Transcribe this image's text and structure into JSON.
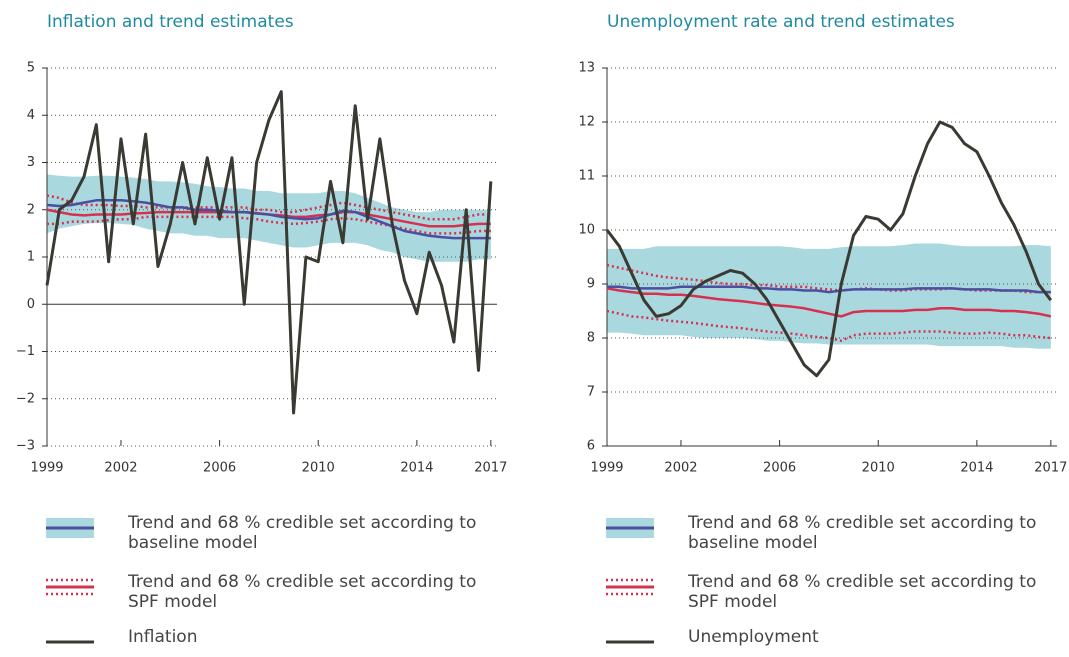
{
  "chart_data": [
    {
      "type": "line",
      "title": "Inflation and trend estimates",
      "x": [
        1999,
        1999.5,
        2000,
        2000.5,
        2001,
        2001.5,
        2002,
        2002.5,
        2003,
        2003.5,
        2004,
        2004.5,
        2005,
        2005.5,
        2006,
        2006.5,
        2007,
        2007.5,
        2008,
        2008.5,
        2009,
        2009.5,
        2010,
        2010.5,
        2011,
        2011.5,
        2012,
        2012.5,
        2013,
        2013.5,
        2014,
        2014.5,
        2015,
        2015.5,
        2016,
        2016.5,
        2017
      ],
      "xlim": [
        1999,
        2017.25
      ],
      "xticks": [
        1999,
        2002,
        2006,
        2010,
        2014,
        2017
      ],
      "ylim": [
        -3,
        5
      ],
      "yticks": [
        {
          "value": -3,
          "label": "−3"
        },
        {
          "value": -2,
          "label": "−2"
        },
        {
          "value": -1,
          "label": "−1"
        },
        0,
        1,
        2,
        3,
        4,
        5
      ],
      "grid": true,
      "band": {
        "color": "#a9d8df",
        "lower": [
          1.5,
          1.6,
          1.65,
          1.7,
          1.72,
          1.72,
          1.7,
          1.68,
          1.6,
          1.55,
          1.5,
          1.5,
          1.45,
          1.45,
          1.4,
          1.4,
          1.4,
          1.35,
          1.3,
          1.25,
          1.2,
          1.2,
          1.25,
          1.3,
          1.3,
          1.3,
          1.25,
          1.15,
          1.1,
          1.0,
          0.95,
          0.9,
          0.9,
          0.9,
          0.9,
          0.95,
          0.95
        ],
        "upper": [
          2.75,
          2.72,
          2.7,
          2.7,
          2.72,
          2.72,
          2.7,
          2.68,
          2.65,
          2.6,
          2.6,
          2.58,
          2.55,
          2.5,
          2.48,
          2.45,
          2.45,
          2.4,
          2.4,
          2.35,
          2.35,
          2.35,
          2.35,
          2.4,
          2.4,
          2.35,
          2.25,
          2.15,
          2.05,
          2.0,
          1.95,
          1.95,
          2.0,
          2.0,
          2.0,
          2.0,
          2.0
        ]
      },
      "series": [
        {
          "name": "Trend and 68 % credible set according to baseline model",
          "color": "#4a4fa0",
          "values": [
            2.1,
            2.08,
            2.1,
            2.15,
            2.2,
            2.2,
            2.2,
            2.18,
            2.15,
            2.1,
            2.05,
            2.05,
            2.0,
            2.0,
            1.98,
            1.95,
            1.95,
            1.92,
            1.9,
            1.85,
            1.82,
            1.8,
            1.82,
            1.9,
            1.98,
            1.95,
            1.85,
            1.75,
            1.65,
            1.55,
            1.5,
            1.45,
            1.42,
            1.4,
            1.4,
            1.4,
            1.4
          ]
        },
        {
          "name": "Trend and 68 % credible set according to SPF model",
          "color": "#d8304f",
          "values": [
            2.0,
            1.95,
            1.9,
            1.88,
            1.9,
            1.9,
            1.9,
            1.92,
            1.93,
            1.95,
            1.95,
            1.95,
            1.95,
            1.95,
            1.95,
            1.95,
            1.95,
            1.93,
            1.9,
            1.88,
            1.85,
            1.85,
            1.88,
            1.9,
            1.95,
            1.95,
            1.9,
            1.85,
            1.8,
            1.75,
            1.7,
            1.65,
            1.65,
            1.65,
            1.68,
            1.7,
            1.7
          ]
        },
        {
          "color": "#d8304f",
          "dash": true,
          "values": [
            2.3,
            2.25,
            2.15,
            2.1,
            2.1,
            2.1,
            2.08,
            2.08,
            2.05,
            2.05,
            2.05,
            2.05,
            2.05,
            2.05,
            2.05,
            2.05,
            2.05,
            2.0,
            2.0,
            1.95,
            1.95,
            2.0,
            2.05,
            2.1,
            2.15,
            2.1,
            2.05,
            2.0,
            1.95,
            1.9,
            1.85,
            1.8,
            1.8,
            1.8,
            1.85,
            1.9,
            1.9
          ]
        },
        {
          "color": "#d8304f",
          "dash": true,
          "values": [
            1.7,
            1.7,
            1.75,
            1.75,
            1.75,
            1.78,
            1.8,
            1.8,
            1.85,
            1.85,
            1.85,
            1.85,
            1.85,
            1.85,
            1.85,
            1.85,
            1.82,
            1.8,
            1.75,
            1.72,
            1.7,
            1.72,
            1.75,
            1.8,
            1.82,
            1.8,
            1.75,
            1.7,
            1.65,
            1.6,
            1.55,
            1.5,
            1.5,
            1.5,
            1.52,
            1.55,
            1.55
          ]
        },
        {
          "name": "Inflation",
          "color": "#3a3a32",
          "values": [
            0.4,
            2.0,
            2.2,
            2.7,
            3.8,
            0.9,
            3.5,
            1.7,
            3.6,
            0.8,
            1.7,
            3.0,
            1.7,
            3.1,
            1.8,
            3.1,
            0.0,
            3.0,
            3.9,
            4.5,
            -2.3,
            1.0,
            0.9,
            2.6,
            1.3,
            4.2,
            1.8,
            3.5,
            1.7,
            0.5,
            -0.2,
            1.1,
            0.4,
            -0.8,
            2.0,
            -1.4,
            2.6
          ]
        }
      ]
    },
    {
      "type": "line",
      "title": "Unemployment rate and trend estimates",
      "x": [
        1999,
        1999.5,
        2000,
        2000.5,
        2001,
        2001.5,
        2002,
        2002.5,
        2003,
        2003.5,
        2004,
        2004.5,
        2005,
        2005.5,
        2006,
        2006.5,
        2007,
        2007.5,
        2008,
        2008.5,
        2009,
        2009.5,
        2010,
        2010.5,
        2011,
        2011.5,
        2012,
        2012.5,
        2013,
        2013.5,
        2014,
        2014.5,
        2015,
        2015.5,
        2016,
        2016.5,
        2017
      ],
      "xlim": [
        1999,
        2017.25
      ],
      "xticks": [
        1999,
        2002,
        2006,
        2010,
        2014,
        2017
      ],
      "ylim": [
        6,
        13
      ],
      "yticks": [
        6,
        7,
        8,
        9,
        10,
        11,
        12,
        13
      ],
      "grid": true,
      "band": {
        "color": "#a9d8df",
        "lower": [
          8.1,
          8.1,
          8.08,
          8.05,
          8.05,
          8.05,
          8.05,
          8.02,
          8.0,
          8.0,
          8.0,
          8.0,
          7.98,
          7.95,
          7.95,
          7.92,
          7.9,
          7.9,
          7.88,
          7.88,
          7.88,
          7.88,
          7.88,
          7.88,
          7.88,
          7.88,
          7.88,
          7.85,
          7.85,
          7.85,
          7.85,
          7.85,
          7.85,
          7.82,
          7.82,
          7.8,
          7.8
        ],
        "upper": [
          9.65,
          9.65,
          9.65,
          9.65,
          9.7,
          9.7,
          9.7,
          9.7,
          9.7,
          9.7,
          9.7,
          9.7,
          9.7,
          9.7,
          9.7,
          9.68,
          9.65,
          9.65,
          9.65,
          9.68,
          9.7,
          9.7,
          9.7,
          9.7,
          9.72,
          9.75,
          9.75,
          9.75,
          9.72,
          9.7,
          9.7,
          9.7,
          9.7,
          9.7,
          9.72,
          9.72,
          9.7
        ]
      },
      "series": [
        {
          "name": "Trend and 68 % credible set according to baseline model",
          "color": "#4a4fa0",
          "values": [
            8.95,
            8.95,
            8.92,
            8.92,
            8.92,
            8.92,
            8.95,
            8.95,
            8.95,
            8.95,
            8.95,
            8.95,
            8.92,
            8.92,
            8.9,
            8.9,
            8.88,
            8.88,
            8.85,
            8.88,
            8.9,
            8.9,
            8.9,
            8.9,
            8.9,
            8.92,
            8.92,
            8.92,
            8.92,
            8.9,
            8.9,
            8.9,
            8.88,
            8.88,
            8.88,
            8.85,
            8.85
          ]
        },
        {
          "name": "Trend and 68 % credible set according to SPF model",
          "color": "#d8304f",
          "values": [
            8.92,
            8.88,
            8.85,
            8.82,
            8.82,
            8.8,
            8.8,
            8.78,
            8.75,
            8.72,
            8.7,
            8.68,
            8.65,
            8.62,
            8.6,
            8.58,
            8.55,
            8.5,
            8.45,
            8.4,
            8.48,
            8.5,
            8.5,
            8.5,
            8.5,
            8.52,
            8.52,
            8.55,
            8.55,
            8.52,
            8.52,
            8.52,
            8.5,
            8.5,
            8.48,
            8.45,
            8.4
          ]
        },
        {
          "color": "#d8304f",
          "dash": true,
          "values": [
            9.35,
            9.3,
            9.25,
            9.2,
            9.15,
            9.12,
            9.1,
            9.08,
            9.05,
            9.02,
            9.0,
            9.0,
            8.98,
            8.98,
            8.95,
            8.95,
            8.95,
            8.92,
            8.9,
            8.88,
            8.9,
            8.92,
            8.9,
            8.88,
            8.88,
            8.9,
            8.9,
            8.9,
            8.92,
            8.9,
            8.88,
            8.88,
            8.88,
            8.88,
            8.85,
            8.85,
            8.85
          ]
        },
        {
          "color": "#d8304f",
          "dash": true,
          "values": [
            8.5,
            8.45,
            8.4,
            8.38,
            8.35,
            8.32,
            8.3,
            8.28,
            8.25,
            8.22,
            8.2,
            8.18,
            8.15,
            8.12,
            8.1,
            8.08,
            8.05,
            8.02,
            8.0,
            7.95,
            8.05,
            8.08,
            8.08,
            8.08,
            8.1,
            8.12,
            8.12,
            8.12,
            8.1,
            8.08,
            8.08,
            8.1,
            8.08,
            8.05,
            8.05,
            8.02,
            8.0
          ]
        },
        {
          "name": "Unemployment",
          "color": "#3a3a32",
          "values": [
            10.0,
            9.7,
            9.2,
            8.7,
            8.4,
            8.45,
            8.6,
            8.9,
            9.05,
            9.15,
            9.25,
            9.2,
            9.0,
            8.7,
            8.3,
            7.9,
            7.5,
            7.3,
            7.6,
            9.0,
            9.9,
            10.25,
            10.2,
            10.0,
            10.3,
            11.0,
            11.6,
            12.0,
            11.9,
            11.6,
            11.45,
            11.0,
            10.5,
            10.1,
            9.6,
            9.0,
            8.7
          ]
        }
      ]
    }
  ]
}
